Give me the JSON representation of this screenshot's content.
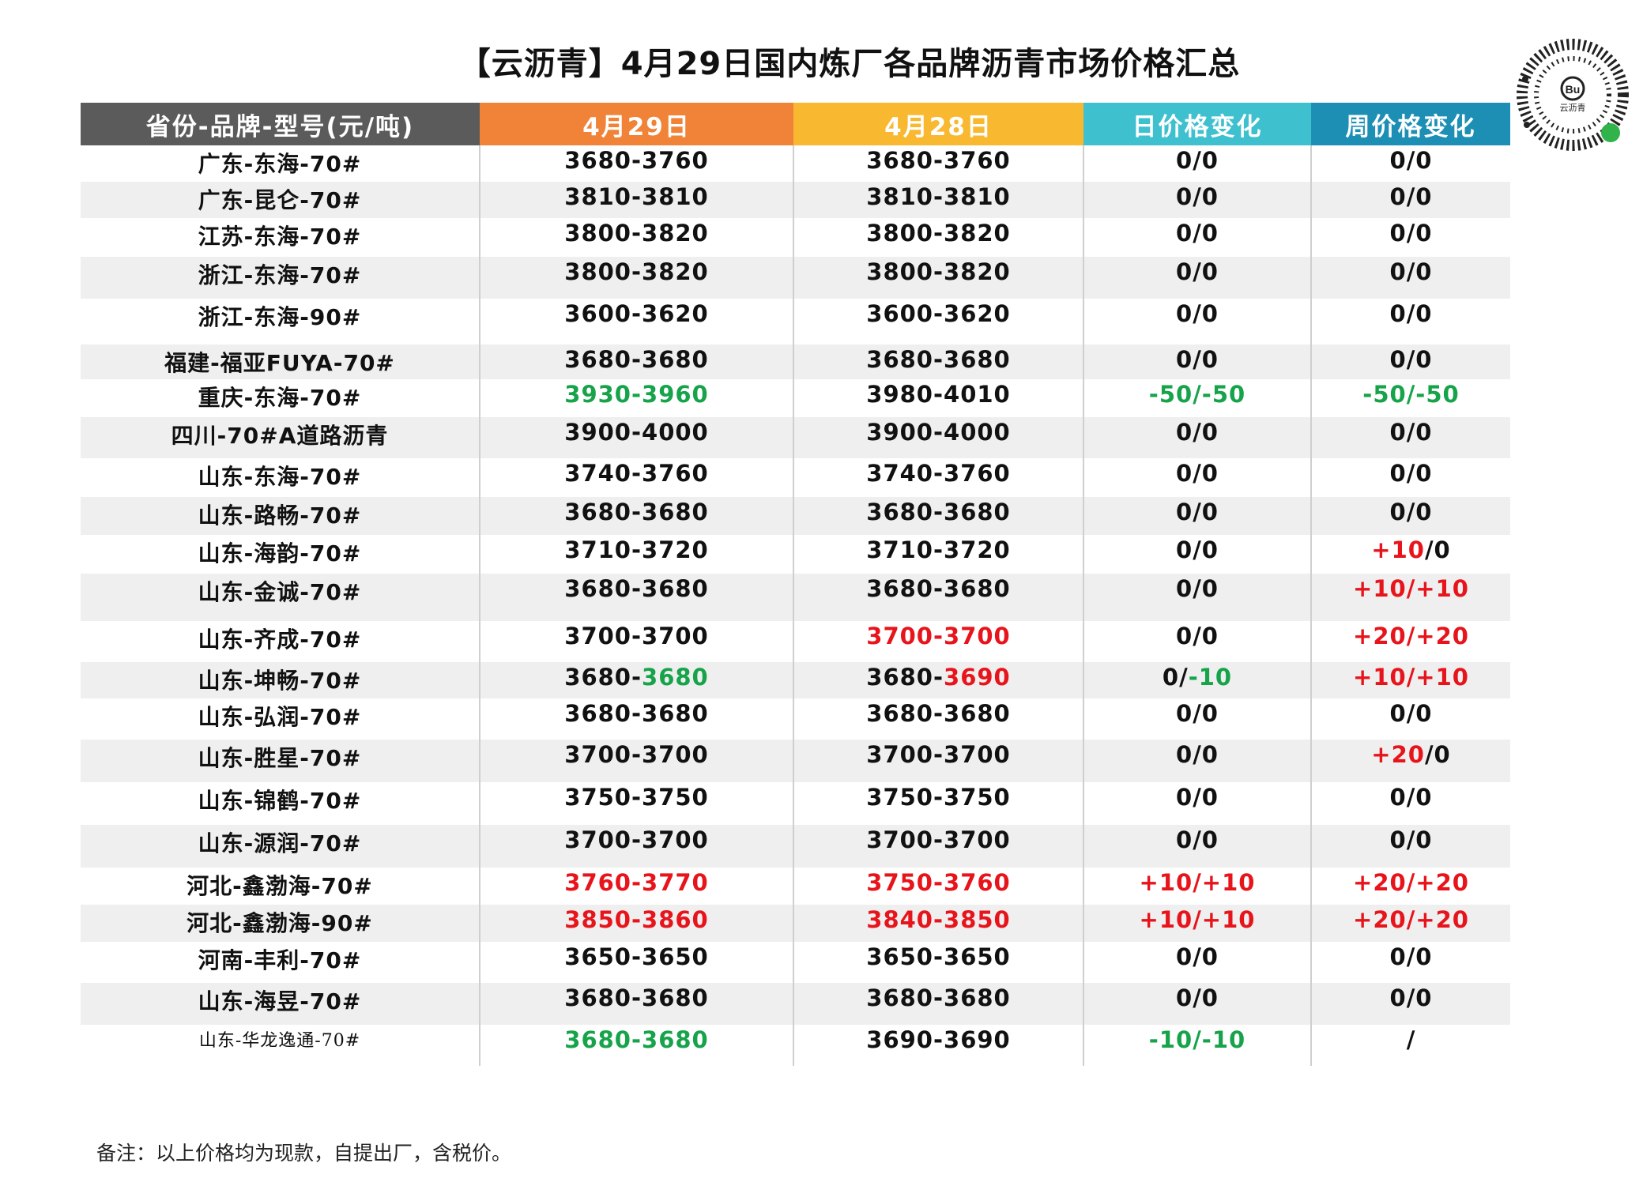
{
  "title": "【云沥青】4月29日国内炼厂各品牌沥青市场价格汇总",
  "logo_text": "云沥青",
  "headers": [
    "省份-品牌-型号(元/吨)",
    "4月29日",
    "4月28日",
    "日价格变化",
    "周价格变化"
  ],
  "colors": {
    "header_gray": "#5b5b5b",
    "header_orange": "#f08337",
    "header_yellow": "#f8b931",
    "header_cyan": "#3ec0cf",
    "header_blue": "#1d8fb4",
    "rise": "#e8141b",
    "fall": "#16a34a"
  },
  "rows": [
    {
      "name": "广东-东海-70#",
      "d29": [
        [
          "3680-3760",
          "plain"
        ]
      ],
      "d28": [
        [
          "3680-3760",
          "plain"
        ]
      ],
      "day": [
        [
          "0/0",
          "plain"
        ]
      ],
      "week": [
        [
          "0/0",
          "plain"
        ]
      ]
    },
    {
      "name": "广东-昆仑-70#",
      "d29": [
        [
          "3810-3810",
          "plain"
        ]
      ],
      "d28": [
        [
          "3810-3810",
          "plain"
        ]
      ],
      "day": [
        [
          "0/0",
          "plain"
        ]
      ],
      "week": [
        [
          "0/0",
          "plain"
        ]
      ]
    },
    {
      "name": "江苏-东海-70#",
      "d29": [
        [
          "3800-3820",
          "plain"
        ]
      ],
      "d28": [
        [
          "3800-3820",
          "plain"
        ]
      ],
      "day": [
        [
          "0/0",
          "plain"
        ]
      ],
      "week": [
        [
          "0/0",
          "plain"
        ]
      ]
    },
    {
      "name": "浙江-东海-70#",
      "d29": [
        [
          "3800-3820",
          "plain"
        ]
      ],
      "d28": [
        [
          "3800-3820",
          "plain"
        ]
      ],
      "day": [
        [
          "0/0",
          "plain"
        ]
      ],
      "week": [
        [
          "0/0",
          "plain"
        ]
      ]
    },
    {
      "name": "浙江-东海-90#",
      "d29": [
        [
          "3600-3620",
          "plain"
        ]
      ],
      "d28": [
        [
          "3600-3620",
          "plain"
        ]
      ],
      "day": [
        [
          "0/0",
          "plain"
        ]
      ],
      "week": [
        [
          "0/0",
          "plain"
        ]
      ]
    },
    {
      "name": "福建-福亚FUYA-70#",
      "d29": [
        [
          "3680-3680",
          "plain"
        ]
      ],
      "d28": [
        [
          "3680-3680",
          "plain"
        ]
      ],
      "day": [
        [
          "0/0",
          "plain"
        ]
      ],
      "week": [
        [
          "0/0",
          "plain"
        ]
      ]
    },
    {
      "name": "重庆-东海-70#",
      "d29": [
        [
          "3930-3960",
          "green"
        ]
      ],
      "d28": [
        [
          "3980-4010",
          "plain"
        ]
      ],
      "day": [
        [
          "-50/-50",
          "green"
        ]
      ],
      "week": [
        [
          "-50/-50",
          "green"
        ]
      ]
    },
    {
      "name": "四川-70#A道路沥青",
      "d29": [
        [
          "3900-4000",
          "plain"
        ]
      ],
      "d28": [
        [
          "3900-4000",
          "plain"
        ]
      ],
      "day": [
        [
          "0/0",
          "plain"
        ]
      ],
      "week": [
        [
          "0/0",
          "plain"
        ]
      ]
    },
    {
      "name": "山东-东海-70#",
      "d29": [
        [
          "3740-3760",
          "plain"
        ]
      ],
      "d28": [
        [
          "3740-3760",
          "plain"
        ]
      ],
      "day": [
        [
          "0/0",
          "plain"
        ]
      ],
      "week": [
        [
          "0/0",
          "plain"
        ]
      ]
    },
    {
      "name": "山东-路畅-70#",
      "d29": [
        [
          "3680-3680",
          "plain"
        ]
      ],
      "d28": [
        [
          "3680-3680",
          "plain"
        ]
      ],
      "day": [
        [
          "0/0",
          "plain"
        ]
      ],
      "week": [
        [
          "0/0",
          "plain"
        ]
      ]
    },
    {
      "name": "山东-海韵-70#",
      "d29": [
        [
          "3710-3720",
          "plain"
        ]
      ],
      "d28": [
        [
          "3710-3720",
          "plain"
        ]
      ],
      "day": [
        [
          "0/0",
          "plain"
        ]
      ],
      "week": [
        [
          "+10",
          "red"
        ],
        [
          "/0",
          "plain"
        ]
      ]
    },
    {
      "name": "山东-金诚-70#",
      "d29": [
        [
          "3680-3680",
          "plain"
        ]
      ],
      "d28": [
        [
          "3680-3680",
          "plain"
        ]
      ],
      "day": [
        [
          "0/0",
          "plain"
        ]
      ],
      "week": [
        [
          "+10/+10",
          "red"
        ]
      ]
    },
    {
      "name": "山东-齐成-70#",
      "d29": [
        [
          "3700-3700",
          "plain"
        ]
      ],
      "d28": [
        [
          "3700-3700",
          "red"
        ]
      ],
      "day": [
        [
          "0/0",
          "plain"
        ]
      ],
      "week": [
        [
          "+20/+20",
          "red"
        ]
      ]
    },
    {
      "name": "山东-坤畅-70#",
      "d29": [
        [
          "3680-",
          "plain"
        ],
        [
          "3680",
          "green"
        ]
      ],
      "d28": [
        [
          "3680-",
          "plain"
        ],
        [
          "3690",
          "red"
        ]
      ],
      "day": [
        [
          "0/",
          "plain"
        ],
        [
          "-10",
          "green"
        ]
      ],
      "week": [
        [
          "+10/+10",
          "red"
        ]
      ]
    },
    {
      "name": "山东-弘润-70#",
      "d29": [
        [
          "3680-3680",
          "plain"
        ]
      ],
      "d28": [
        [
          "3680-3680",
          "plain"
        ]
      ],
      "day": [
        [
          "0/0",
          "plain"
        ]
      ],
      "week": [
        [
          "0/0",
          "plain"
        ]
      ]
    },
    {
      "name": "山东-胜星-70#",
      "d29": [
        [
          "3700-3700",
          "plain"
        ]
      ],
      "d28": [
        [
          "3700-3700",
          "plain"
        ]
      ],
      "day": [
        [
          "0/0",
          "plain"
        ]
      ],
      "week": [
        [
          "+20",
          "red"
        ],
        [
          "/0",
          "plain"
        ]
      ]
    },
    {
      "name": "山东-锦鹤-70#",
      "d29": [
        [
          "3750-3750",
          "plain"
        ]
      ],
      "d28": [
        [
          "3750-3750",
          "plain"
        ]
      ],
      "day": [
        [
          "0/0",
          "plain"
        ]
      ],
      "week": [
        [
          "0/0",
          "plain"
        ]
      ]
    },
    {
      "name": "山东-源润-70#",
      "d29": [
        [
          "3700-3700",
          "plain"
        ]
      ],
      "d28": [
        [
          "3700-3700",
          "plain"
        ]
      ],
      "day": [
        [
          "0/0",
          "plain"
        ]
      ],
      "week": [
        [
          "0/0",
          "plain"
        ]
      ]
    },
    {
      "name": "河北-鑫渤海-70#",
      "d29": [
        [
          "3760-3770",
          "red"
        ]
      ],
      "d28": [
        [
          "3750-3760",
          "red"
        ]
      ],
      "day": [
        [
          "+10/+10",
          "red"
        ]
      ],
      "week": [
        [
          "+20/+20",
          "red"
        ]
      ]
    },
    {
      "name": "河北-鑫渤海-90#",
      "d29": [
        [
          "3850-3860",
          "red"
        ]
      ],
      "d28": [
        [
          "3840-3850",
          "red"
        ]
      ],
      "day": [
        [
          "+10/+10",
          "red"
        ]
      ],
      "week": [
        [
          "+20/+20",
          "red"
        ]
      ]
    },
    {
      "name": "河南-丰利-70#",
      "d29": [
        [
          "3650-3650",
          "plain"
        ]
      ],
      "d28": [
        [
          "3650-3650",
          "plain"
        ]
      ],
      "day": [
        [
          "0/0",
          "plain"
        ]
      ],
      "week": [
        [
          "0/0",
          "plain"
        ]
      ]
    },
    {
      "name": "山东-海昱-70#",
      "d29": [
        [
          "3680-3680",
          "plain"
        ]
      ],
      "d28": [
        [
          "3680-3680",
          "plain"
        ]
      ],
      "day": [
        [
          "0/0",
          "plain"
        ]
      ],
      "week": [
        [
          "0/0",
          "plain"
        ]
      ]
    },
    {
      "name": "山东-华龙逸通-70#",
      "name_style": "light",
      "d29": [
        [
          "3680-3680",
          "green"
        ]
      ],
      "d28": [
        [
          "3690-3690",
          "plain"
        ]
      ],
      "day": [
        [
          "-10/-10",
          "green"
        ]
      ],
      "week": [
        [
          "/",
          "plain"
        ]
      ]
    }
  ],
  "note": "备注：以上价格均为现款，自提出厂，含税价。"
}
